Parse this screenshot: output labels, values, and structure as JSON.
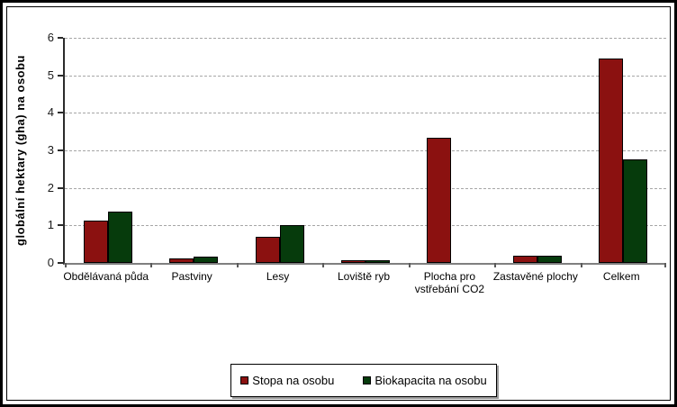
{
  "frame": {
    "background": "#ffffff",
    "outer_border_color": "#000000",
    "inner_border_color": "#000000",
    "gridline_color": "#a6a6a6",
    "axis_color": "#7f7f7f"
  },
  "chart_data": {
    "type": "bar",
    "title": "",
    "xlabel": "",
    "ylabel": "globální hektary (gha) na osobu",
    "ylim": [
      0,
      6
    ],
    "yticks": [
      0,
      1,
      2,
      3,
      4,
      5,
      6
    ],
    "grid": "horizontal-dashed",
    "legend_position": "bottom-center",
    "categories": [
      "Obdělávaná půda",
      "Pastviny",
      "Lesy",
      "Loviště ryb",
      "Plocha pro vstřebání CO2",
      "Zastavěné plochy",
      "Celkem"
    ],
    "series": [
      {
        "name": "Stopa na osobu",
        "color": "#8B1110",
        "values": [
          1.12,
          0.11,
          0.7,
          0.04,
          3.33,
          0.2,
          5.45
        ]
      },
      {
        "name": "Biokapacita na osobu",
        "color": "#063B0C",
        "values": [
          1.38,
          0.17,
          1.0,
          0.04,
          0,
          0.2,
          2.75
        ]
      }
    ]
  }
}
